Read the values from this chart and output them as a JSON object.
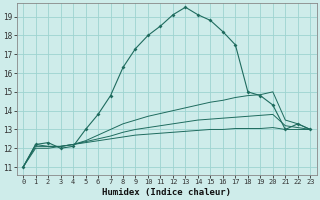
{
  "xlabel": "Humidex (Indice chaleur)",
  "bg_color": "#ceecea",
  "grid_color": "#9ed4d0",
  "line_color": "#1e6b5e",
  "xlim": [
    -0.5,
    23.5
  ],
  "ylim": [
    10.6,
    19.7
  ],
  "xticks": [
    0,
    1,
    2,
    3,
    4,
    5,
    6,
    7,
    8,
    9,
    10,
    11,
    12,
    13,
    14,
    15,
    16,
    17,
    18,
    19,
    20,
    21,
    22,
    23
  ],
  "yticks": [
    11,
    12,
    13,
    14,
    15,
    16,
    17,
    18,
    19
  ],
  "main": [
    11.0,
    12.2,
    12.3,
    12.0,
    12.1,
    13.0,
    13.8,
    14.8,
    16.3,
    17.3,
    18.0,
    18.5,
    19.1,
    19.5,
    19.1,
    18.8,
    18.2,
    17.5,
    15.0,
    14.8,
    14.3,
    13.0,
    13.3,
    13.0
  ],
  "line1": [
    11.0,
    12.2,
    12.1,
    12.1,
    12.2,
    12.3,
    12.4,
    12.5,
    12.6,
    12.7,
    12.75,
    12.8,
    12.85,
    12.9,
    12.95,
    13.0,
    13.0,
    13.05,
    13.05,
    13.05,
    13.1,
    13.0,
    13.0,
    13.0
  ],
  "line2": [
    11.0,
    12.1,
    12.1,
    12.1,
    12.2,
    12.35,
    12.5,
    12.65,
    12.85,
    13.0,
    13.1,
    13.2,
    13.3,
    13.4,
    13.5,
    13.55,
    13.6,
    13.65,
    13.7,
    13.75,
    13.8,
    13.2,
    13.1,
    13.0
  ],
  "line3": [
    11.0,
    12.0,
    12.0,
    12.1,
    12.2,
    12.4,
    12.7,
    13.0,
    13.3,
    13.5,
    13.7,
    13.85,
    14.0,
    14.15,
    14.3,
    14.45,
    14.55,
    14.7,
    14.8,
    14.85,
    15.0,
    13.5,
    13.3,
    13.0
  ]
}
